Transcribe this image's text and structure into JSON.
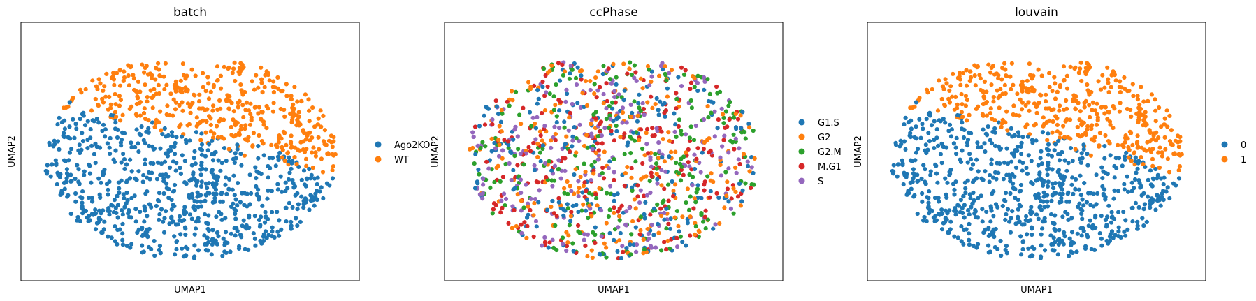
{
  "chart_data": [
    {
      "type": "scatter",
      "title": "batch",
      "xlabel": "UMAP1",
      "ylabel": "UMAP2",
      "xticks": [],
      "yticks": [],
      "legend_position": "right",
      "coloring": "batch",
      "series": [
        {
          "name": "Ago2KO",
          "color": "#1f77b4"
        },
        {
          "name": "WT",
          "color": "#ff7f0e"
        }
      ]
    },
    {
      "type": "scatter",
      "title": "ccPhase",
      "xlabel": "UMAP1",
      "ylabel": "UMAP2",
      "xticks": [],
      "yticks": [],
      "legend_position": "right",
      "coloring": "random",
      "series": [
        {
          "name": "G1.S",
          "color": "#1f77b4"
        },
        {
          "name": "G2",
          "color": "#ff7f0e"
        },
        {
          "name": "G2.M",
          "color": "#2ca02c"
        },
        {
          "name": "M.G1",
          "color": "#d62728"
        },
        {
          "name": "S",
          "color": "#9467bd"
        }
      ]
    },
    {
      "type": "scatter",
      "title": "louvain",
      "xlabel": "UMAP1",
      "ylabel": "UMAP2",
      "xticks": [],
      "yticks": [],
      "legend_position": "right",
      "coloring": "batch",
      "series": [
        {
          "name": "0",
          "color": "#1f77b4"
        },
        {
          "name": "1",
          "color": "#ff7f0e"
        }
      ]
    }
  ]
}
